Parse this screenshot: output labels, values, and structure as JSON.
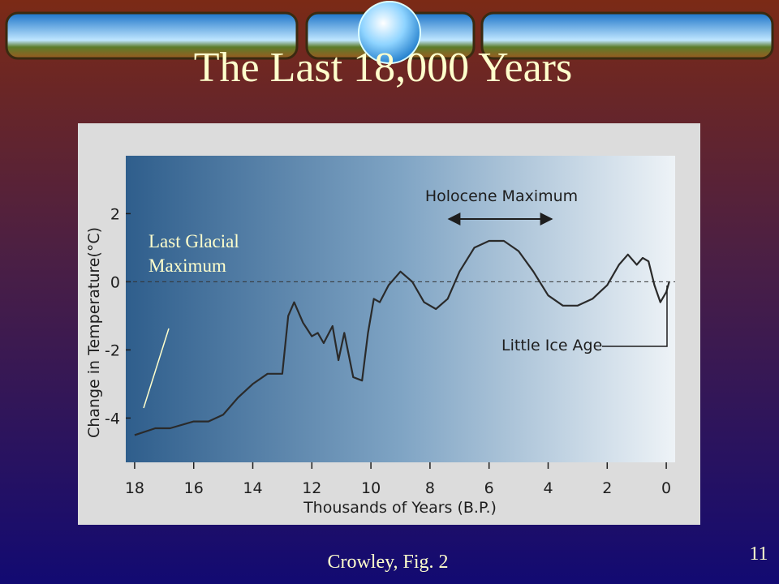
{
  "slide": {
    "title": "The Last 18,000 Years",
    "note": "Last Glacial Maximum",
    "caption": "Crowley, Fig. 2",
    "page_number": "11"
  },
  "chart_data": {
    "type": "line",
    "xlabel": "Thousands of Years (B.P.)",
    "ylabel": "Change in Temperature(°C)",
    "x": [
      18,
      17.3,
      16.8,
      16,
      15.5,
      15,
      14.5,
      14,
      13.5,
      13,
      12.8,
      12.6,
      12.3,
      12,
      11.8,
      11.6,
      11.3,
      11.1,
      10.9,
      10.6,
      10.3,
      10.1,
      9.9,
      9.7,
      9.4,
      9,
      8.6,
      8.2,
      7.8,
      7.4,
      7,
      6.5,
      6,
      5.5,
      5,
      4.5,
      4,
      3.5,
      3,
      2.5,
      2,
      1.6,
      1.3,
      1,
      0.8,
      0.6,
      0.4,
      0.2,
      0,
      -0.1
    ],
    "values": [
      -4.5,
      -4.3,
      -4.3,
      -4.1,
      -4.1,
      -3.9,
      -3.4,
      -3,
      -2.7,
      -2.7,
      -1,
      -0.6,
      -1.2,
      -1.6,
      -1.5,
      -1.8,
      -1.3,
      -2.3,
      -1.5,
      -2.8,
      -2.9,
      -1.5,
      -0.5,
      -0.6,
      -0.1,
      0.3,
      0,
      -0.6,
      -0.8,
      -0.5,
      0.3,
      1,
      1.2,
      1.2,
      0.9,
      0.3,
      -0.4,
      -0.7,
      -0.7,
      -0.5,
      -0.1,
      0.5,
      0.8,
      0.5,
      0.7,
      0.6,
      -0.1,
      -0.6,
      -0.3,
      0
    ],
    "color": "#2a2a2a",
    "xlim": [
      18.3,
      -0.3
    ],
    "xticks": [
      18,
      16,
      14,
      12,
      10,
      8,
      6,
      4,
      2,
      0
    ],
    "ylim": [
      -5.3,
      3.7
    ],
    "yticks": [
      -4,
      -2,
      0,
      2
    ],
    "annotations": [
      "Holocene Maximum",
      "Little Ice Age"
    ]
  }
}
